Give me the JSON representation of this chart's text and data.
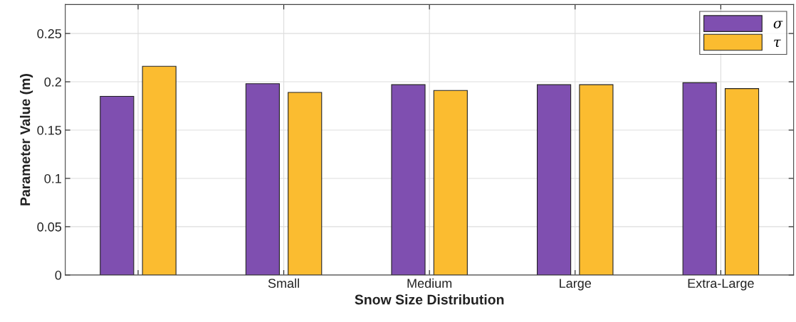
{
  "chart_data": {
    "type": "bar",
    "xlabel": "Snow Size Distribution",
    "ylabel": "Parameter Value (m)",
    "categories": [
      null,
      "Small",
      "Medium",
      "Large",
      "Extra-Large"
    ],
    "series": [
      {
        "name": "σ",
        "color": "#7f4fb0",
        "values": [
          0.185,
          0.198,
          0.197,
          0.197,
          0.199
        ]
      },
      {
        "name": "τ",
        "color": "#fbbc30",
        "values": [
          0.216,
          0.189,
          0.191,
          0.197,
          0.193
        ]
      }
    ],
    "ylim": [
      0,
      0.28
    ],
    "yticks": [
      0,
      0.05,
      0.1,
      0.15,
      0.2,
      0.25
    ],
    "grid": true,
    "legend": "top right"
  }
}
